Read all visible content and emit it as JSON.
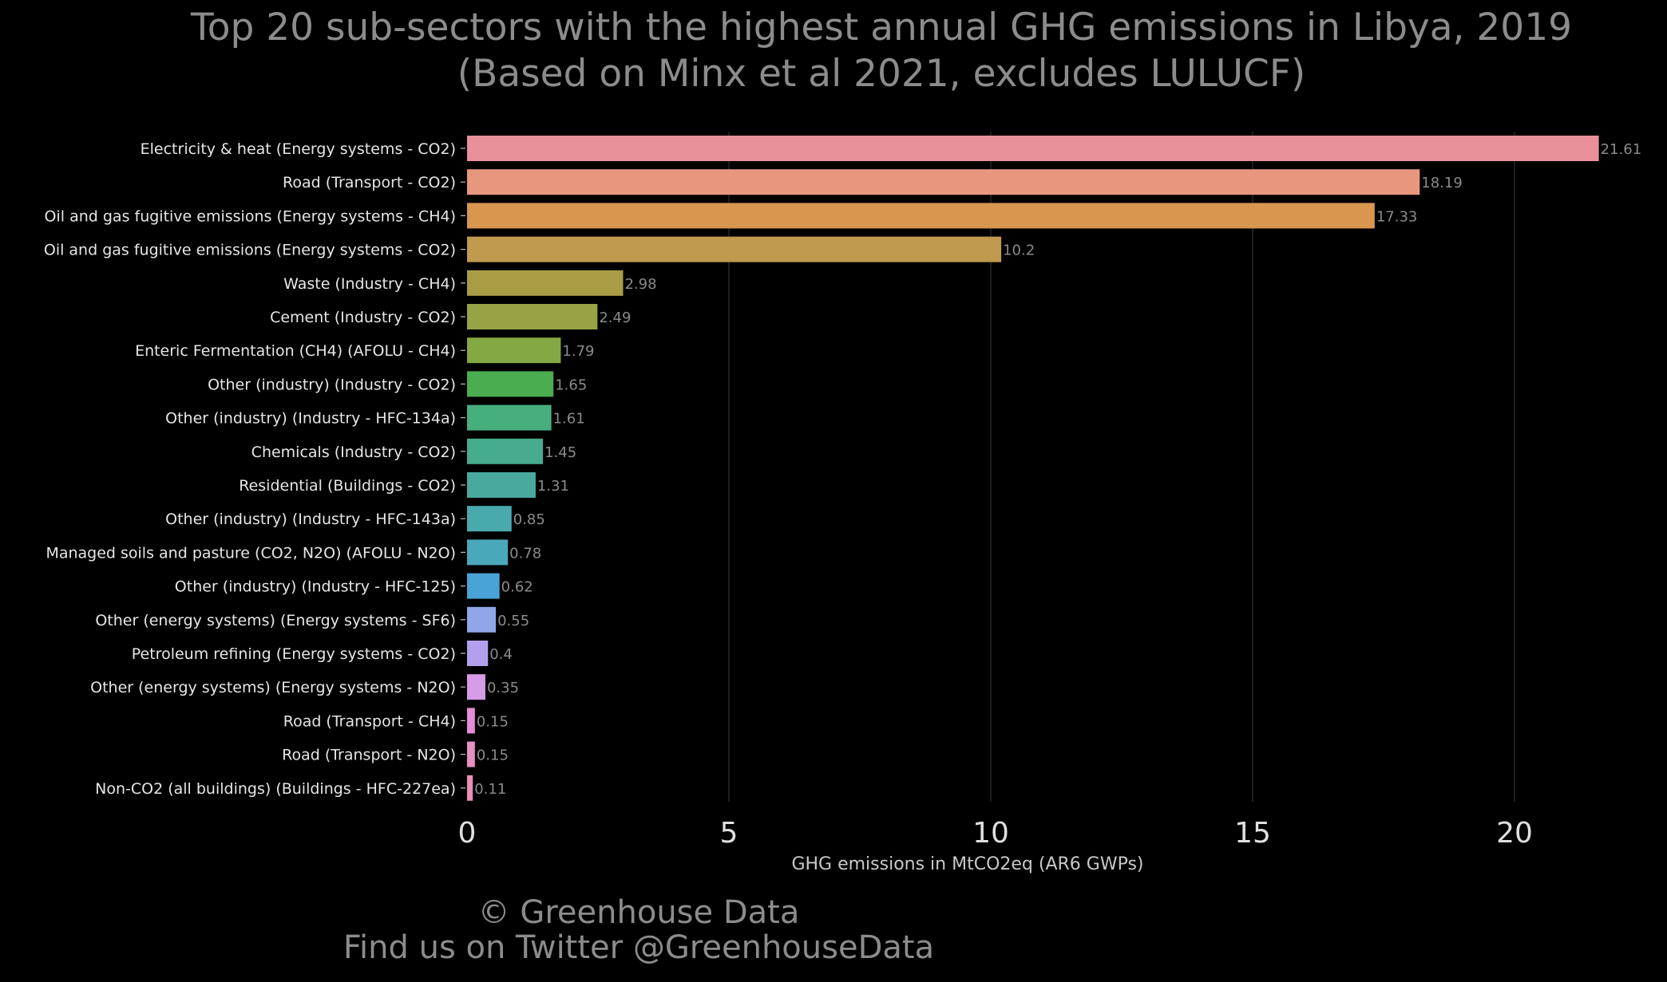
{
  "title_line1": "Top 20 sub-sectors with the highest annual GHG emissions in Libya, 2019",
  "title_line2": "(Based on Minx et al 2021, excludes LULUCF)",
  "footer_line1": "© Greenhouse Data",
  "footer_line2": "Find us on Twitter @GreenhouseData",
  "chart_data": {
    "type": "bar",
    "orientation": "horizontal",
    "title": "Top 20 sub-sectors with the highest annual GHG emissions in Libya, 2019 (Based on Minx et al 2021, excludes LULUCF)",
    "xlabel": "GHG emissions in MtCO2eq (AR6 GWPs)",
    "ylabel": "",
    "xlim": [
      0,
      22.7
    ],
    "xticks": [
      0,
      5,
      10,
      15,
      20
    ],
    "grid": "vertical",
    "categories": [
      "Electricity & heat (Energy systems - CO2)",
      "Road (Transport - CO2)",
      "Oil and gas fugitive emissions (Energy systems - CH4)",
      "Oil and gas fugitive emissions (Energy systems - CO2)",
      "Waste (Industry - CH4)",
      "Cement (Industry - CO2)",
      "Enteric Fermentation (CH4) (AFOLU - CH4)",
      "Other (industry) (Industry - CO2)",
      "Other (industry) (Industry - HFC-134a)",
      "Chemicals (Industry - CO2)",
      "Residential (Buildings - CO2)",
      "Other (industry) (Industry - HFC-143a)",
      "Managed soils and pasture (CO2, N2O) (AFOLU - N2O)",
      "Other (industry) (Industry - HFC-125)",
      "Other (energy systems) (Energy systems - SF6)",
      "Petroleum refining (Energy systems - CO2)",
      "Other (energy systems) (Energy systems - N2O)",
      "Road (Transport - CH4)",
      "Road (Transport - N2O)",
      "Non-CO2 (all buildings) (Buildings - HFC-227ea)"
    ],
    "values": [
      21.61,
      18.19,
      17.33,
      10.2,
      2.98,
      2.49,
      1.79,
      1.65,
      1.61,
      1.45,
      1.31,
      0.85,
      0.78,
      0.62,
      0.55,
      0.4,
      0.35,
      0.15,
      0.15,
      0.11
    ],
    "value_labels": [
      "21.61",
      "18.19",
      "17.33",
      "10.2",
      "2.98",
      "2.49",
      "1.79",
      "1.65",
      "1.61",
      "1.45",
      "1.31",
      "0.85",
      "0.78",
      "0.62",
      "0.55",
      "0.4",
      "0.35",
      "0.15",
      "0.15",
      "0.11"
    ],
    "colors": [
      "#e8919b",
      "#e8977f",
      "#d8964f",
      "#c09a4f",
      "#a89d45",
      "#97a344",
      "#84a843",
      "#4aad4f",
      "#47ae7e",
      "#47ac8e",
      "#49a99f",
      "#4aa9ac",
      "#4ba8bb",
      "#4aa3d6",
      "#8fa6e8",
      "#b3a0ec",
      "#d89be8",
      "#e68cd8",
      "#e88fc4",
      "#e88fb3"
    ]
  }
}
